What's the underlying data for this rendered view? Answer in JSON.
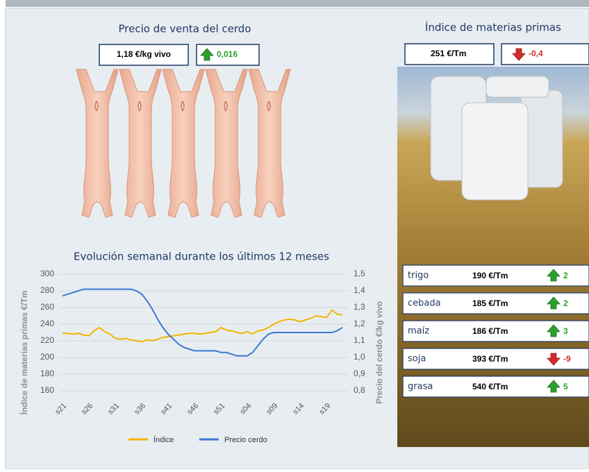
{
  "pig_panel": {
    "title": "Precio de venta del cerdo",
    "price": "1,18 €/kg vivo",
    "change": "0,016"
  },
  "raw_materials": {
    "title": "Índice de materias primas",
    "index": "251 €/Tm",
    "change": "-0,4",
    "items": [
      {
        "name": "trigo",
        "price": "190 €/Tm",
        "change": "2"
      },
      {
        "name": "cebada",
        "price": "185 €/Tm",
        "change": "2"
      },
      {
        "name": "maíz",
        "price": "186 €/Tm",
        "change": "3"
      },
      {
        "name": "soja",
        "price": "393 €/Tm",
        "change": "-9"
      },
      {
        "name": "grasa",
        "price": "540 €/Tm",
        "change": "5"
      }
    ]
  },
  "chart_data": {
    "type": "line",
    "title": "Evolución semanal durante los últimos 12 meses",
    "y_label": "Índice de materias primas €/Tm",
    "y2_label": "Precio del cerdo €/kg vivo",
    "categories": [
      "s21",
      null,
      null,
      null,
      null,
      "s26",
      null,
      null,
      null,
      null,
      "s31",
      null,
      null,
      null,
      null,
      "s36",
      null,
      null,
      null,
      null,
      "s41",
      null,
      null,
      null,
      null,
      "s46",
      null,
      null,
      null,
      null,
      "s51",
      null,
      null,
      null,
      null,
      "s04",
      null,
      null,
      null,
      null,
      "s09",
      null,
      null,
      null,
      null,
      "s14",
      null,
      null,
      null,
      null,
      "s19",
      null,
      null,
      null
    ],
    "series": [
      {
        "name": "Índice",
        "color": "#f4b400",
        "values": [
          229,
          229,
          228,
          229,
          227,
          226,
          232,
          236,
          231,
          228,
          223,
          222,
          223,
          221,
          220,
          219,
          221,
          220,
          222,
          224,
          225,
          226,
          227,
          228,
          229,
          229,
          228,
          229,
          230,
          231,
          236,
          233,
          232,
          230,
          229,
          231,
          228,
          232,
          233,
          236,
          240,
          243,
          245,
          246,
          245,
          243,
          245,
          247,
          250,
          249,
          248,
          257,
          252,
          251
        ]
      },
      {
        "name": "Precio cerdo",
        "color": "#3a78d4",
        "axis": "y2",
        "values": [
          1.37,
          1.38,
          1.39,
          1.4,
          1.41,
          1.41,
          1.41,
          1.41,
          1.41,
          1.41,
          1.41,
          1.41,
          1.41,
          1.41,
          1.4,
          1.38,
          1.34,
          1.29,
          1.23,
          1.18,
          1.14,
          1.11,
          1.08,
          1.06,
          1.05,
          1.04,
          1.04,
          1.04,
          1.04,
          1.04,
          1.03,
          1.03,
          1.02,
          1.01,
          1.01,
          1.01,
          1.03,
          1.07,
          1.11,
          1.14,
          1.15,
          1.15,
          1.15,
          1.15,
          1.15,
          1.15,
          1.15,
          1.15,
          1.15,
          1.15,
          1.15,
          1.15,
          1.16,
          1.18
        ]
      }
    ],
    "ylim": [
      160,
      300
    ],
    "yticks": [
      160,
      180,
      200,
      220,
      240,
      260,
      280,
      300
    ],
    "y2lim": [
      0.8,
      1.5
    ],
    "y2ticks": [
      {
        "value": 0.8,
        "label": "0,8"
      },
      {
        "value": 0.9,
        "label": "0,9"
      },
      {
        "value": 1.0,
        "label": "1,0"
      },
      {
        "value": 1.1,
        "label": "1,1"
      },
      {
        "value": 1.2,
        "label": "1,2"
      },
      {
        "value": 1.3,
        "label": "1,3"
      },
      {
        "value": 1.4,
        "label": "1,4"
      },
      {
        "value": 1.5,
        "label": "1,5"
      }
    ],
    "grid": true
  }
}
